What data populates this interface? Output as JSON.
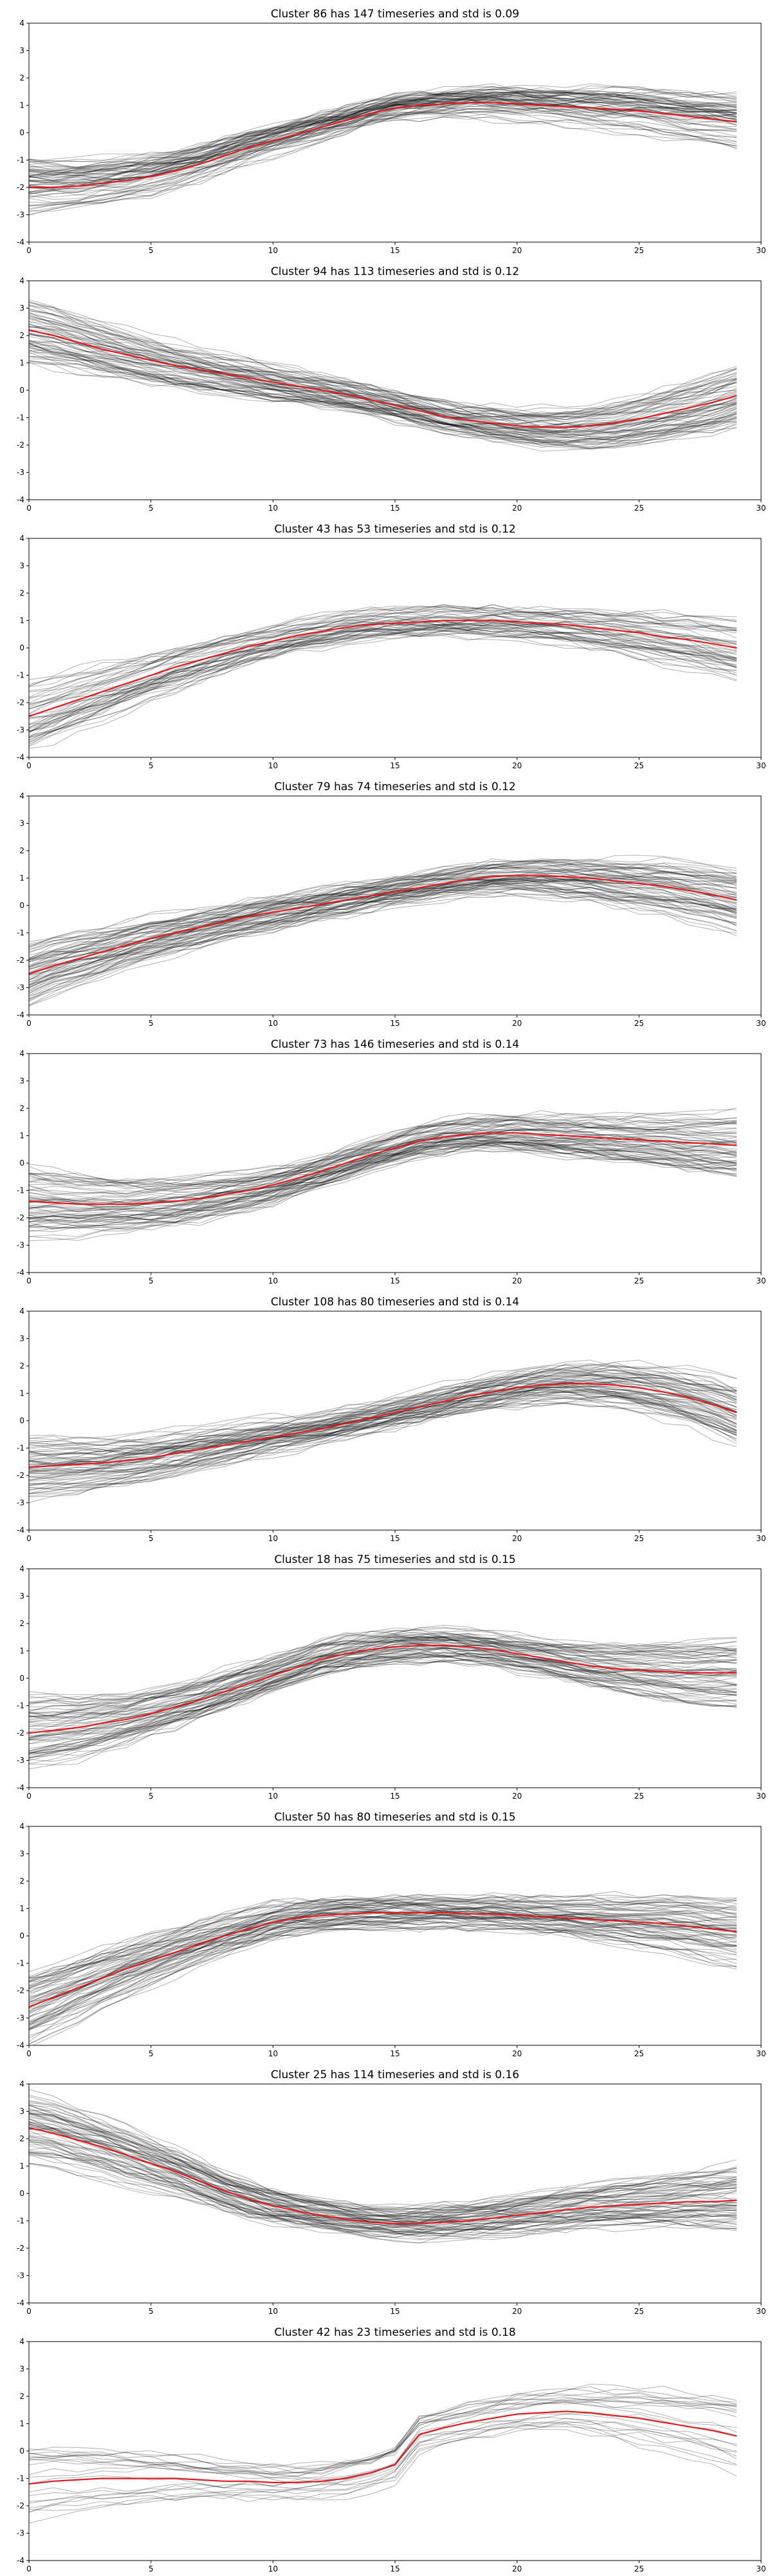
{
  "figure": {
    "panels_count": 10
  },
  "colors": {
    "member": "#000000",
    "center": "#e31a1c",
    "axes": "#000000"
  },
  "chart_data": [
    {
      "type": "line",
      "title": "Cluster 86 has 147 timeseries and std is 0.09",
      "xlim": [
        0,
        30
      ],
      "ylim": [
        -4,
        4
      ],
      "xticks": [
        "0",
        "5",
        "10",
        "15",
        "20",
        "25",
        "30"
      ],
      "yticks": [
        "-4",
        "-3",
        "-2",
        "-1",
        "0",
        "1",
        "2",
        "3",
        "4"
      ],
      "member_count": 147,
      "std": 0.09,
      "center": [
        -2.0,
        -2.0,
        -1.95,
        -1.85,
        -1.75,
        -1.6,
        -1.4,
        -1.15,
        -0.85,
        -0.55,
        -0.3,
        -0.05,
        0.2,
        0.45,
        0.7,
        0.9,
        1.0,
        1.05,
        1.1,
        1.1,
        1.05,
        1.0,
        0.95,
        0.9,
        0.85,
        0.8,
        0.7,
        0.6,
        0.5,
        0.4
      ]
    },
    {
      "type": "line",
      "title": "Cluster 94 has 113 timeseries and std is 0.12",
      "xlim": [
        0,
        30
      ],
      "ylim": [
        -4,
        4
      ],
      "xticks": [
        "0",
        "5",
        "10",
        "15",
        "20",
        "25",
        "30"
      ],
      "yticks": [
        "-4",
        "-3",
        "-2",
        "-1",
        "0",
        "1",
        "2",
        "3",
        "4"
      ],
      "member_count": 113,
      "std": 0.12,
      "center": [
        2.2,
        2.0,
        1.75,
        1.5,
        1.3,
        1.1,
        0.9,
        0.75,
        0.6,
        0.45,
        0.3,
        0.15,
        0.0,
        -0.15,
        -0.35,
        -0.55,
        -0.75,
        -0.95,
        -1.1,
        -1.2,
        -1.3,
        -1.35,
        -1.35,
        -1.3,
        -1.2,
        -1.05,
        -0.85,
        -0.65,
        -0.45,
        -0.2
      ]
    },
    {
      "type": "line",
      "title": "Cluster 43 has 53 timeseries and std is 0.12",
      "xlim": [
        0,
        30
      ],
      "ylim": [
        -4,
        4
      ],
      "xticks": [
        "0",
        "5",
        "10",
        "15",
        "20",
        "25",
        "30"
      ],
      "yticks": [
        "-4",
        "-3",
        "-2",
        "-1",
        "0",
        "1",
        "2",
        "3",
        "4"
      ],
      "member_count": 53,
      "std": 0.12,
      "center": [
        -2.5,
        -2.2,
        -1.9,
        -1.6,
        -1.3,
        -1.0,
        -0.7,
        -0.45,
        -0.2,
        0.05,
        0.25,
        0.45,
        0.6,
        0.75,
        0.85,
        0.9,
        0.95,
        1.0,
        1.0,
        1.0,
        0.95,
        0.9,
        0.85,
        0.75,
        0.65,
        0.55,
        0.4,
        0.3,
        0.15,
        0.0
      ]
    },
    {
      "type": "line",
      "title": "Cluster 79 has 74 timeseries and std is 0.12",
      "xlim": [
        0,
        30
      ],
      "ylim": [
        -4,
        4
      ],
      "xticks": [
        "0",
        "5",
        "10",
        "15",
        "20",
        "25",
        "30"
      ],
      "yticks": [
        "-4",
        "-3",
        "-2",
        "-1",
        "0",
        "1",
        "2",
        "3",
        "4"
      ],
      "member_count": 74,
      "std": 0.12,
      "center": [
        -2.5,
        -2.2,
        -1.95,
        -1.7,
        -1.45,
        -1.2,
        -1.0,
        -0.8,
        -0.6,
        -0.4,
        -0.25,
        -0.1,
        0.05,
        0.2,
        0.35,
        0.5,
        0.65,
        0.8,
        0.95,
        1.05,
        1.1,
        1.1,
        1.05,
        1.0,
        0.9,
        0.8,
        0.7,
        0.55,
        0.4,
        0.2
      ]
    },
    {
      "type": "line",
      "title": "Cluster 73 has 146 timeseries and std is 0.14",
      "xlim": [
        0,
        30
      ],
      "ylim": [
        -4,
        4
      ],
      "xticks": [
        "0",
        "5",
        "10",
        "15",
        "20",
        "25",
        "30"
      ],
      "yticks": [
        "-4",
        "-3",
        "-2",
        "-1",
        "0",
        "1",
        "2",
        "3",
        "4"
      ],
      "member_count": 146,
      "std": 0.14,
      "center": [
        -1.4,
        -1.45,
        -1.5,
        -1.5,
        -1.5,
        -1.45,
        -1.4,
        -1.3,
        -1.15,
        -1.0,
        -0.8,
        -0.55,
        -0.3,
        0.0,
        0.3,
        0.55,
        0.8,
        0.95,
        1.05,
        1.1,
        1.1,
        1.05,
        1.0,
        0.95,
        0.9,
        0.85,
        0.8,
        0.75,
        0.7,
        0.65
      ]
    },
    {
      "type": "line",
      "title": "Cluster 108 has 80 timeseries and std is 0.14",
      "xlim": [
        0,
        30
      ],
      "ylim": [
        -4,
        4
      ],
      "xticks": [
        "0",
        "5",
        "10",
        "15",
        "20",
        "25",
        "30"
      ],
      "yticks": [
        "-4",
        "-3",
        "-2",
        "-1",
        "0",
        "1",
        "2",
        "3",
        "4"
      ],
      "member_count": 80,
      "std": 0.14,
      "center": [
        -1.7,
        -1.65,
        -1.6,
        -1.55,
        -1.45,
        -1.35,
        -1.2,
        -1.05,
        -0.9,
        -0.75,
        -0.6,
        -0.45,
        -0.3,
        -0.1,
        0.1,
        0.3,
        0.5,
        0.7,
        0.9,
        1.05,
        1.2,
        1.3,
        1.35,
        1.35,
        1.3,
        1.2,
        1.05,
        0.85,
        0.6,
        0.3
      ]
    },
    {
      "type": "line",
      "title": "Cluster 18 has 75 timeseries and std is 0.15",
      "xlim": [
        0,
        30
      ],
      "ylim": [
        -4,
        4
      ],
      "xticks": [
        "0",
        "5",
        "10",
        "15",
        "20",
        "25",
        "30"
      ],
      "yticks": [
        "-4",
        "-3",
        "-2",
        "-1",
        "0",
        "1",
        "2",
        "3",
        "4"
      ],
      "member_count": 75,
      "std": 0.15,
      "center": [
        -2.0,
        -1.9,
        -1.8,
        -1.65,
        -1.5,
        -1.3,
        -1.05,
        -0.8,
        -0.5,
        -0.2,
        0.1,
        0.4,
        0.7,
        0.9,
        1.05,
        1.15,
        1.2,
        1.2,
        1.15,
        1.05,
        0.9,
        0.75,
        0.6,
        0.45,
        0.35,
        0.3,
        0.25,
        0.2,
        0.2,
        0.2
      ]
    },
    {
      "type": "line",
      "title": "Cluster 50 has 80 timeseries and std is 0.15",
      "xlim": [
        0,
        30
      ],
      "ylim": [
        -4,
        4
      ],
      "xticks": [
        "0",
        "5",
        "10",
        "15",
        "20",
        "25",
        "30"
      ],
      "yticks": [
        "-4",
        "-3",
        "-2",
        "-1",
        "0",
        "1",
        "2",
        "3",
        "4"
      ],
      "member_count": 80,
      "std": 0.15,
      "center": [
        -2.6,
        -2.25,
        -1.9,
        -1.55,
        -1.2,
        -0.9,
        -0.6,
        -0.3,
        0.0,
        0.25,
        0.5,
        0.65,
        0.75,
        0.8,
        0.85,
        0.85,
        0.85,
        0.85,
        0.8,
        0.8,
        0.75,
        0.7,
        0.65,
        0.6,
        0.55,
        0.5,
        0.45,
        0.35,
        0.25,
        0.15
      ]
    },
    {
      "type": "line",
      "title": "Cluster 25 has 114 timeseries and std is 0.16",
      "xlim": [
        0,
        30
      ],
      "ylim": [
        -4,
        4
      ],
      "xticks": [
        "0",
        "5",
        "10",
        "15",
        "20",
        "25",
        "30"
      ],
      "yticks": [
        "-4",
        "-3",
        "-2",
        "-1",
        "0",
        "1",
        "2",
        "3",
        "4"
      ],
      "member_count": 114,
      "std": 0.16,
      "center": [
        2.4,
        2.2,
        1.95,
        1.7,
        1.4,
        1.1,
        0.8,
        0.45,
        0.1,
        -0.2,
        -0.45,
        -0.65,
        -0.8,
        -0.95,
        -1.05,
        -1.1,
        -1.1,
        -1.05,
        -1.0,
        -0.9,
        -0.8,
        -0.7,
        -0.6,
        -0.5,
        -0.45,
        -0.4,
        -0.35,
        -0.3,
        -0.3,
        -0.25
      ]
    },
    {
      "type": "line",
      "title": "Cluster 42 has 23 timeseries and std is 0.18",
      "xlim": [
        0,
        30
      ],
      "ylim": [
        -4,
        4
      ],
      "xticks": [
        "0",
        "5",
        "10",
        "15",
        "20",
        "25",
        "30"
      ],
      "yticks": [
        "-4",
        "-3",
        "-2",
        "-1",
        "0",
        "1",
        "2",
        "3",
        "4"
      ],
      "member_count": 23,
      "std": 0.18,
      "center": [
        -1.2,
        -1.1,
        -1.05,
        -1.0,
        -1.0,
        -1.0,
        -1.0,
        -1.05,
        -1.1,
        -1.1,
        -1.15,
        -1.15,
        -1.1,
        -1.0,
        -0.8,
        -0.5,
        0.6,
        0.85,
        1.05,
        1.2,
        1.35,
        1.4,
        1.45,
        1.4,
        1.3,
        1.2,
        1.05,
        0.9,
        0.75,
        0.55
      ]
    }
  ]
}
